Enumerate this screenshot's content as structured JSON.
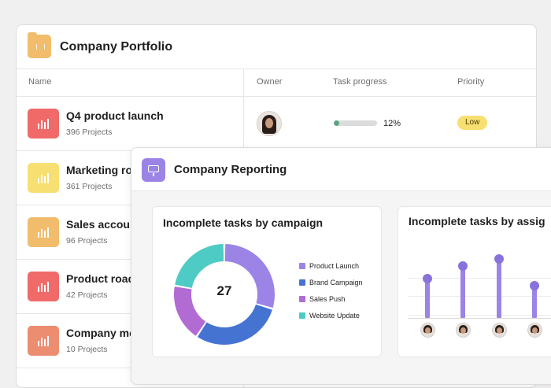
{
  "portfolio": {
    "title": "Company Portfolio",
    "columns": {
      "name": "Name",
      "owner": "Owner",
      "task_progress": "Task progress",
      "priority": "Priority"
    },
    "rows": [
      {
        "name": "Q4 product launch",
        "sub": "396 Projects",
        "color": "#f06a6a"
      },
      {
        "name": "Marketing ro",
        "sub": "361 Projects",
        "color": "#f8df72"
      },
      {
        "name": "Sales accou",
        "sub": "96 Projects",
        "color": "#f1bd6c"
      },
      {
        "name": "Product road",
        "sub": "42 Projects",
        "color": "#f06a6a"
      },
      {
        "name": "Company me",
        "sub": "10 Projects",
        "color": "#ec8d71"
      }
    ],
    "first_row": {
      "progress": 12,
      "progress_label": "12%",
      "priority": "Low"
    }
  },
  "reporting": {
    "title": "Company Reporting",
    "campaign_card": {
      "title": "Incomplete tasks by campaign",
      "total": "27"
    },
    "assignee_card": {
      "title": "Incomplete tasks by assig"
    }
  },
  "chart_data": [
    {
      "type": "pie",
      "title": "Incomplete tasks by campaign",
      "categories": [
        "Product Launch",
        "Brand Campaign",
        "Sales Push",
        "Website Update"
      ],
      "values": [
        8,
        8,
        5,
        6
      ],
      "colors": [
        "#9b84e6",
        "#4573d2",
        "#b36bd4",
        "#4ecbc4"
      ],
      "center_label": "27",
      "legend": "right"
    },
    {
      "type": "bar",
      "title": "Incomplete tasks by assig",
      "categories": [
        "assignee-1",
        "assignee-2",
        "assignee-3",
        "assignee-4"
      ],
      "values": [
        6,
        8,
        9,
        5
      ],
      "color": "#9b84e6"
    }
  ]
}
